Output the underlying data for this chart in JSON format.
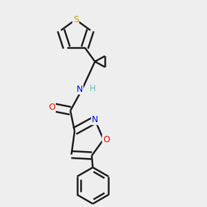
{
  "background_color": "#eeeeee",
  "bond_color": "#1a1a1a",
  "atom_colors": {
    "S": "#c8a000",
    "N": "#0000ee",
    "O": "#ee0000",
    "H": "#5ababa",
    "C": "#1a1a1a"
  },
  "line_width": 1.8,
  "dbl": 0.018
}
